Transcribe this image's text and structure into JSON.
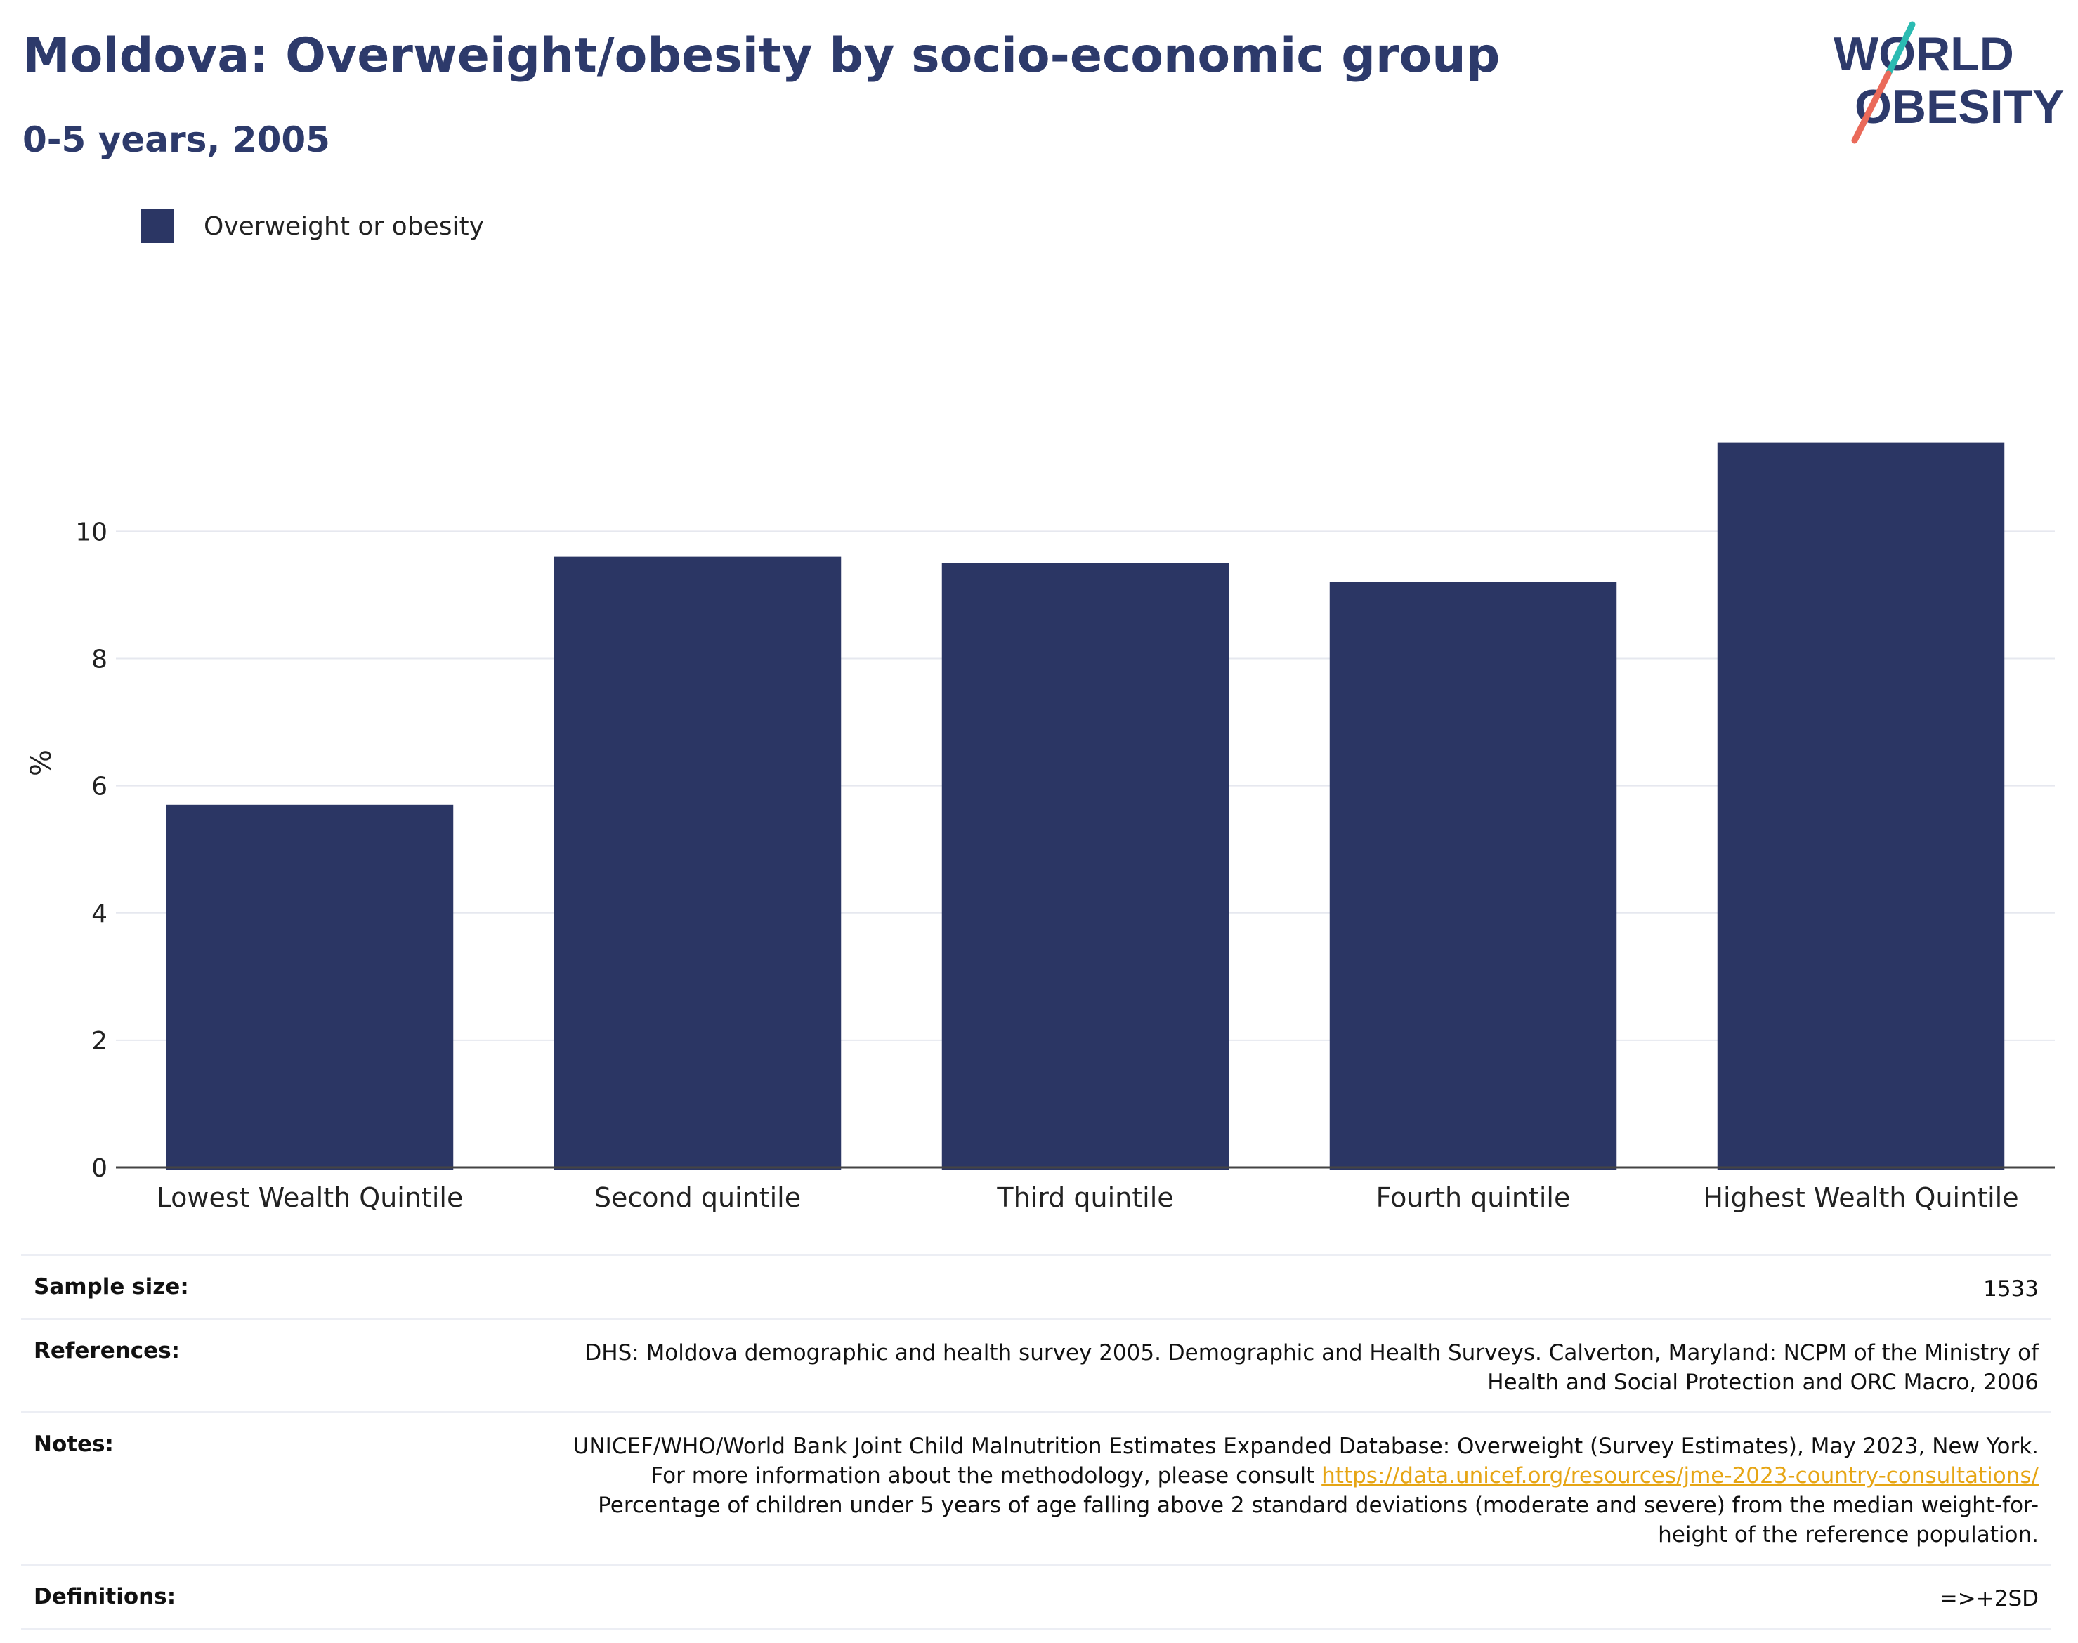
{
  "title": "Moldova: Overweight/obesity by socio-economic group",
  "subtitle": "0-5 years, 2005",
  "logo": {
    "line1": "WORLD",
    "line2": "OBESITY"
  },
  "colors": {
    "bar": "#2b3664",
    "title": "#2d3a6b",
    "link": "#e6a514",
    "grid": "#e6e8ef",
    "logo_teal": "#2bbbb2",
    "logo_coral": "#ea6a5a"
  },
  "chart_data": {
    "type": "bar",
    "categories": [
      "Lowest Wealth Quintile",
      "Second quintile",
      "Third quintile",
      "Fourth quintile",
      "Highest Wealth Quintile"
    ],
    "series": [
      {
        "name": "Overweight or obesity",
        "values": [
          5.7,
          9.6,
          9.5,
          9.2,
          11.4
        ]
      }
    ],
    "xlabel": "",
    "ylabel": "%",
    "ylim": [
      0,
      12.5
    ],
    "yticks": [
      0,
      2,
      4,
      6,
      8,
      10
    ],
    "grid": true,
    "legend_position": "top-left"
  },
  "info": {
    "sample_size_label": "Sample size:",
    "sample_size_value": "1533",
    "references_label": "References:",
    "references_value": "DHS: Moldova demographic and health survey 2005. Demographic and Health Surveys. Calverton, Maryland: NCPM of the Ministry of Health and Social Protection and ORC Macro, 2006",
    "notes_label": "Notes:",
    "notes_text_1": "UNICEF/WHO/World Bank Joint Child Malnutrition Estimates Expanded Database: Overweight (Survey Estimates), May 2023, New York. For more information about the methodology, please consult ",
    "notes_link": "https://data.unicef.org/resources/jme-2023-country-consultations/",
    "notes_text_2": " Percentage of children under 5 years of age falling above 2 standard deviations (moderate and severe) from the median weight-for-height of the reference population.",
    "definitions_label": "Definitions:",
    "definitions_value": "=>+2SD"
  }
}
